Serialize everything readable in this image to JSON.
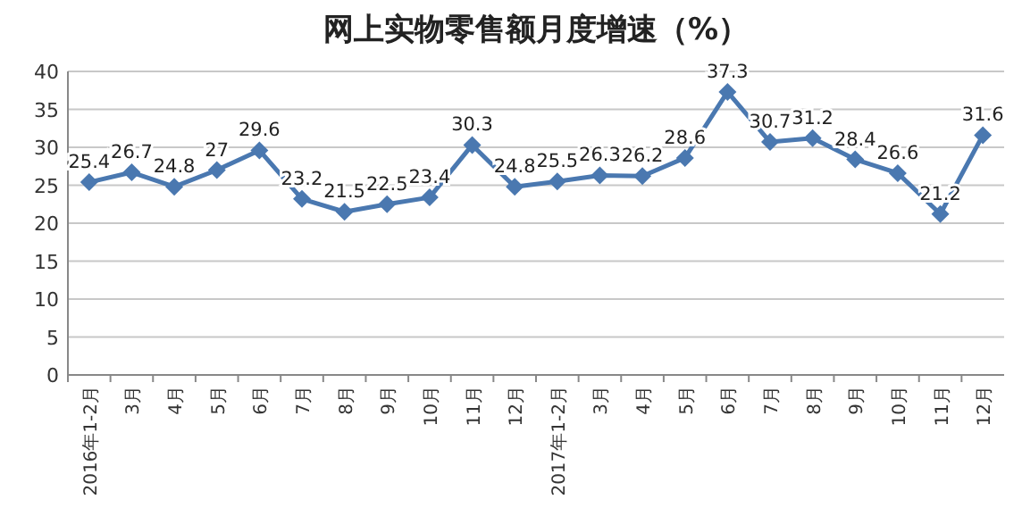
{
  "chart_data": {
    "type": "line",
    "title": "网上实物零售额月度增速（%）",
    "categories": [
      "2016年1-2月",
      "3月",
      "4月",
      "5月",
      "6月",
      "7月",
      "8月",
      "9月",
      "10月",
      "11月",
      "12月",
      "2017年1-2月",
      "3月",
      "4月",
      "5月",
      "6月",
      "7月",
      "8月",
      "9月",
      "10月",
      "11月",
      "12月"
    ],
    "values": [
      25.4,
      26.7,
      24.8,
      27,
      29.6,
      23.2,
      21.5,
      22.5,
      23.4,
      30.3,
      24.8,
      25.5,
      26.3,
      26.2,
      28.6,
      37.3,
      30.7,
      31.2,
      28.4,
      26.6,
      21.2,
      31.6
    ],
    "color": "#4a78b0",
    "ylim": [
      0,
      40
    ],
    "yticks": [
      0,
      5,
      10,
      15,
      20,
      25,
      30,
      35,
      40
    ],
    "grid": "y",
    "marker": "diamond",
    "line_style": "solid",
    "data_labels": true
  }
}
